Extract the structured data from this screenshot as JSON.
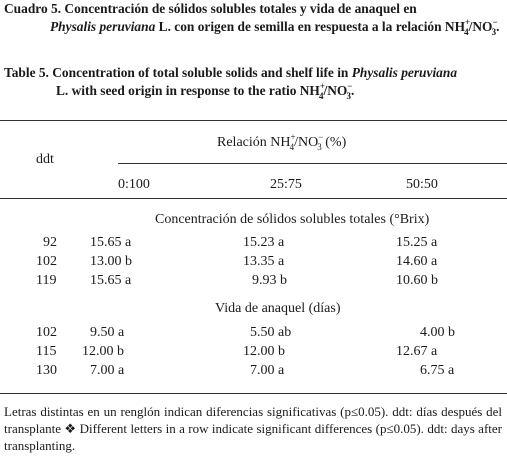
{
  "caption_es": {
    "label": "Cuadro 5.",
    "text_pre": "Concentración de sólidos solubles totales y vida de anaquel en",
    "species": "Physalis peruviana",
    "text_post": "L. con origen de semilla en respuesta a la relación NH",
    "ion1_sub": "4",
    "ion1_sup": "+",
    "sep": "/NO",
    "ion2_sub": "3",
    "ion2_sup": "−",
    "end": "."
  },
  "caption_en": {
    "label": "Table 5.",
    "text_pre": "Concentration of total soluble solids and shelf life in",
    "species": "Physalis peruviana",
    "text_post": "L. with seed origin in response to the ratio NH",
    "ion1_sub": "4",
    "ion1_sup": "+",
    "sep": "/NO",
    "ion2_sub": "3",
    "ion2_sup": "−",
    "end": "."
  },
  "table": {
    "row_header": "ddt",
    "group_header": {
      "pre": "Relación NH",
      "ion1_sub": "4",
      "ion1_sup": "+",
      "sep": "/NO",
      "ion2_sub": "3",
      "ion2_sup": "−",
      "unit": "(%)"
    },
    "columns": [
      "0:100",
      "25:75",
      "50:50"
    ],
    "sections": [
      {
        "title": "Concentración de sólidos solubles totales (°Brix)",
        "rows": [
          {
            "ddt": "92",
            "values": [
              "15.65 a",
              "15.23 a",
              "15.25 a"
            ]
          },
          {
            "ddt": "102",
            "values": [
              "13.00 b",
              "13.35 a",
              "14.60 a"
            ]
          },
          {
            "ddt": "119",
            "values": [
              "15.65 a",
              "9.93 b",
              "10.60 b"
            ]
          }
        ]
      },
      {
        "title": "Vida de anaquel (días)",
        "rows": [
          {
            "ddt": "102",
            "values": [
              "9.50 a",
              "5.50 ab",
              "4.00 b"
            ]
          },
          {
            "ddt": "115",
            "values": [
              "12.00 b",
              "12.00 b",
              "12.67 a"
            ]
          },
          {
            "ddt": "130",
            "values": [
              "7.00 a",
              "7.00 a",
              "6.75 a"
            ]
          }
        ]
      }
    ]
  },
  "footnote": "Letras distintas en un renglón indican diferencias significativas (p≤0.05). ddt: días después del transplante ❖ Different letters in a row indicate significant differences (p≤0.05). ddt: days after transplanting."
}
